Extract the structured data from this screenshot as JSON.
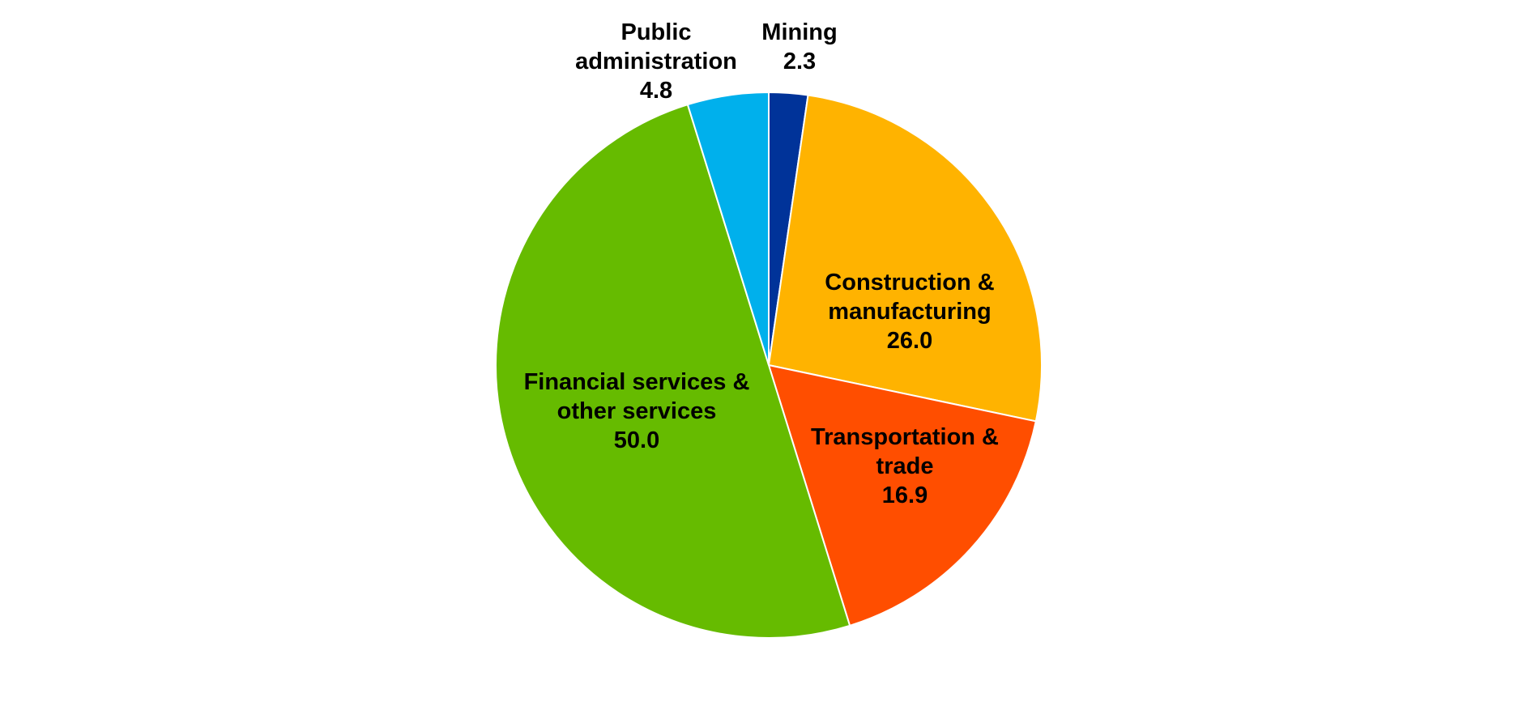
{
  "chart_data": {
    "type": "pie",
    "categories": [
      "Mining",
      "Construction & manufacturing",
      "Transportation & trade",
      "Financial services & other services",
      "Public administration"
    ],
    "values": [
      2.3,
      26.0,
      16.9,
      50.0,
      4.8
    ],
    "value_labels": [
      "2.3",
      "26.0",
      "16.9",
      "50.0",
      "4.8"
    ],
    "colors": [
      "#003399",
      "#ffb300",
      "#ff4e00",
      "#66bb00",
      "#00b0ec"
    ]
  }
}
